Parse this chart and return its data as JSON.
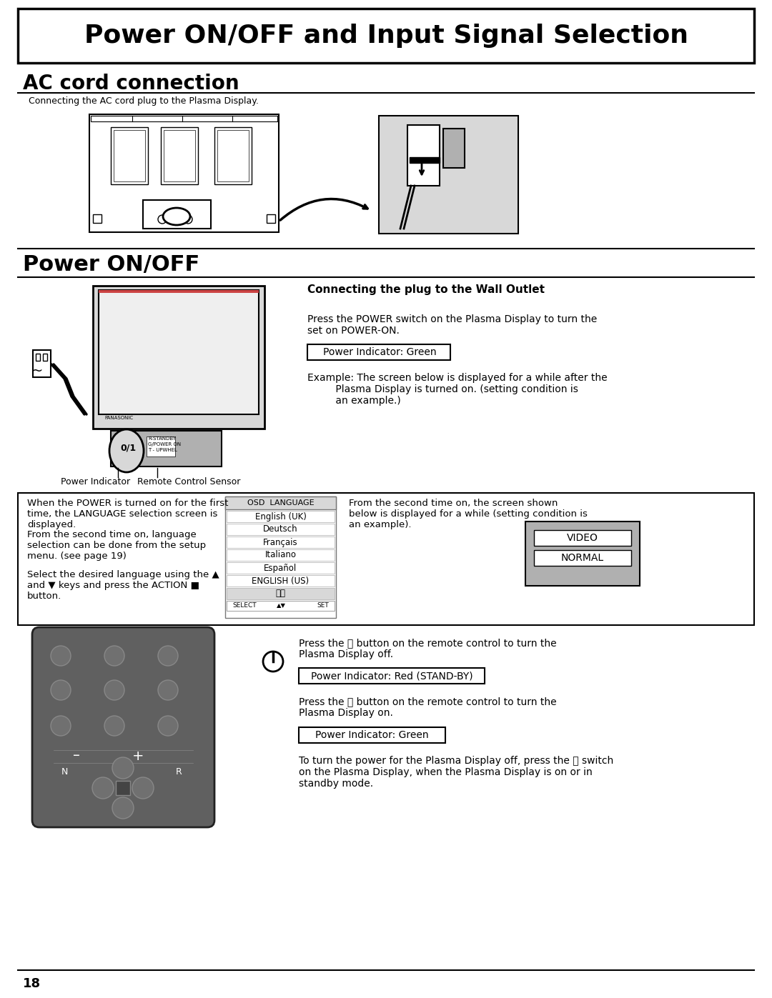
{
  "title": "Power ON/OFF and Input Signal Selection",
  "section1_title": "AC cord connection",
  "section1_subtitle": "  Connecting the AC cord plug to the Plasma Display.",
  "section2_title": "Power ON/OFF",
  "section2_subtitle": "Connecting the plug to the Wall Outlet",
  "text_press_power": "Press the POWER switch on the Plasma Display to turn the\nset on POWER-ON.",
  "text_indicator_green": "Power Indicator: Green",
  "text_example": "Example: The screen below is displayed for a while after the\n         Plasma Display is turned on. (setting condition is\n         an example.)",
  "text_when_power": "When the POWER is turned on for the first\ntime, the LANGUAGE selection screen is\ndisplayed.",
  "text_second_time": "From the second time on, language\nselection can be done from the setup\nmenu. (see page 19)",
  "text_select": "Select the desired language using the ▲\nand ▼ keys and press the ACTION ■\nbutton.",
  "text_second_screen": "From the second time on, the screen shown\nbelow is displayed for a while (setting condition is\nan example).",
  "osd_title": "OSD  LANGUAGE",
  "osd_languages": [
    "English (UK)",
    "Deutsch",
    "Français",
    "Italiano",
    "Español",
    "ENGLISH (US)",
    "中文"
  ],
  "text_power_indicator": "Power Indicator",
  "text_remote_sensor": "Remote Control Sensor",
  "text_press_button_off": "Press the ⏽ button on the remote control to turn the\nPlasma Display off.",
  "text_indicator_red": "Power Indicator: Red (STAND-BY)",
  "text_press_button_on": "Press the ⏽ button on the remote control to turn the\nPlasma Display on.",
  "text_indicator_green2": "Power Indicator: Green",
  "text_to_turn": "To turn the power for the Plasma Display off, press the ⏽ switch\non the Plasma Display, when the Plasma Display is on or in\nstandby mode.",
  "page_number": "18",
  "bg_color": "#ffffff",
  "gray_light": "#d8d8d8",
  "gray_medium": "#b0b0b0",
  "gray_dark": "#888888",
  "remote_color": "#606060",
  "remote_btn": "#707070"
}
